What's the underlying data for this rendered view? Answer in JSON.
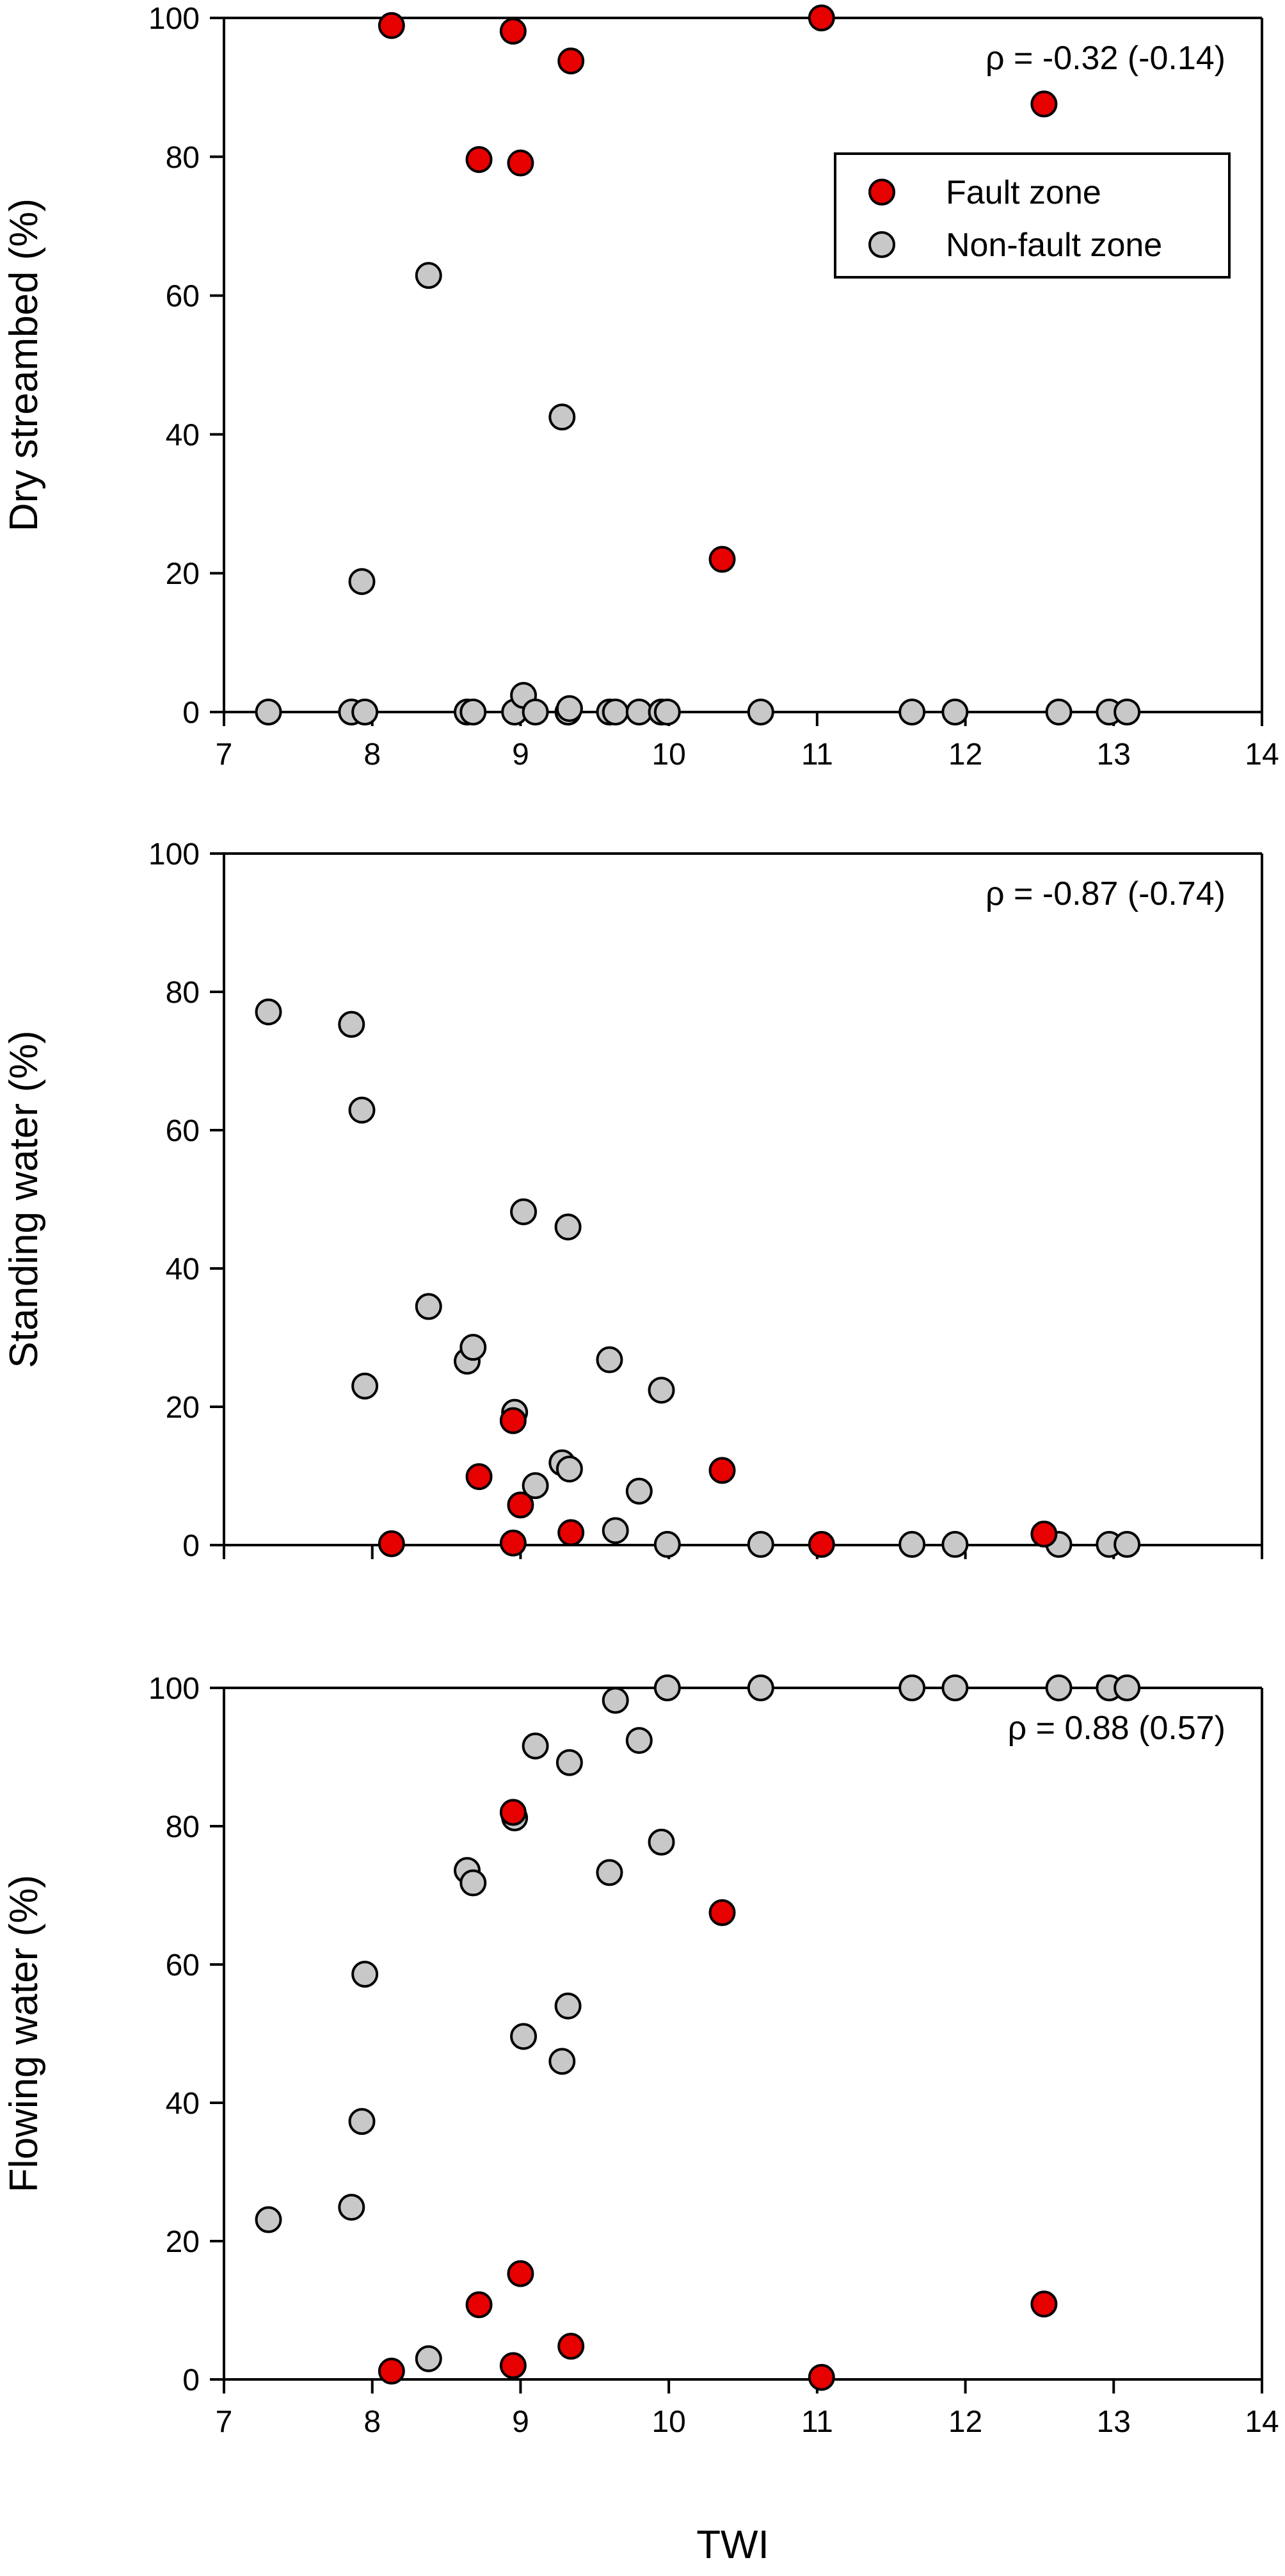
{
  "figure": {
    "xlabel": "TWI"
  },
  "legend": {
    "entries": [
      {
        "label": "Fault zone",
        "color": "#e60000"
      },
      {
        "label": "Non-fault zone",
        "color": "#c8c8c8"
      }
    ]
  },
  "chart_data": [
    {
      "type": "scatter",
      "title": "",
      "xlabel": "",
      "ylabel": "Dry streambed (%)",
      "xlim": [
        7,
        14
      ],
      "ylim": [
        0,
        100
      ],
      "xticks": [
        "7",
        "8",
        "9",
        "10",
        "11",
        "12",
        "13",
        "14"
      ],
      "yticks": [
        "0",
        "20",
        "40",
        "60",
        "80",
        "100"
      ],
      "annotation": "ρ = -0.32 (-0.14)",
      "legend_position": "top-right",
      "grid": false,
      "series": [
        {
          "name": "Fault zone",
          "color": "#e60000",
          "points": [
            [
              8.13,
              98.9
            ],
            [
              8.72,
              79.6
            ],
            [
              8.95,
              98.1
            ],
            [
              9.0,
              79.1
            ],
            [
              9.34,
              93.8
            ],
            [
              10.36,
              22.0
            ],
            [
              11.03,
              100.0
            ],
            [
              12.53,
              87.6
            ]
          ]
        },
        {
          "name": "Non-fault zone",
          "color": "#c8c8c8",
          "points": [
            [
              7.3,
              0
            ],
            [
              7.86,
              0
            ],
            [
              7.93,
              18.8
            ],
            [
              7.95,
              0
            ],
            [
              8.38,
              62.9
            ],
            [
              8.64,
              0
            ],
            [
              8.68,
              0
            ],
            [
              8.96,
              0
            ],
            [
              9.02,
              2.4
            ],
            [
              9.1,
              0
            ],
            [
              9.28,
              42.5
            ],
            [
              9.32,
              0
            ],
            [
              9.33,
              0.5
            ],
            [
              9.6,
              0
            ],
            [
              9.64,
              0
            ],
            [
              9.8,
              0
            ],
            [
              9.95,
              0
            ],
            [
              9.99,
              0
            ],
            [
              10.62,
              0
            ],
            [
              11.64,
              0
            ],
            [
              11.93,
              0
            ],
            [
              12.63,
              0
            ],
            [
              12.97,
              0
            ],
            [
              13.09,
              0
            ]
          ]
        }
      ]
    },
    {
      "type": "scatter",
      "title": "",
      "xlabel": "",
      "ylabel": "Standing water (%)",
      "xlim": [
        7,
        14
      ],
      "ylim": [
        0,
        100
      ],
      "xticks": [],
      "yticks": [
        "0",
        "20",
        "40",
        "60",
        "80",
        "100"
      ],
      "annotation": "ρ = -0.87 (-0.74)",
      "grid": false,
      "series": [
        {
          "name": "Fault zone",
          "color": "#e60000",
          "points": [
            [
              8.13,
              0.2
            ],
            [
              8.72,
              9.9
            ],
            [
              8.95,
              18.0
            ],
            [
              8.95,
              0.3
            ],
            [
              9.0,
              5.8
            ],
            [
              9.34,
              1.8
            ],
            [
              10.36,
              10.8
            ],
            [
              11.03,
              0.1
            ],
            [
              12.53,
              1.6
            ]
          ]
        },
        {
          "name": "Non-fault zone",
          "color": "#c8c8c8",
          "points": [
            [
              7.3,
              77.1
            ],
            [
              7.86,
              75.3
            ],
            [
              7.93,
              62.9
            ],
            [
              7.95,
              23.0
            ],
            [
              8.38,
              34.5
            ],
            [
              8.64,
              26.6
            ],
            [
              8.68,
              28.6
            ],
            [
              8.96,
              19.2
            ],
            [
              9.02,
              48.2
            ],
            [
              9.1,
              8.6
            ],
            [
              9.28,
              11.9
            ],
            [
              9.32,
              46.0
            ],
            [
              9.33,
              11.0
            ],
            [
              9.6,
              26.8
            ],
            [
              9.64,
              2.1
            ],
            [
              9.8,
              7.8
            ],
            [
              9.95,
              22.4
            ],
            [
              9.99,
              0.1
            ],
            [
              10.62,
              0.1
            ],
            [
              11.64,
              0.1
            ],
            [
              11.93,
              0.1
            ],
            [
              12.63,
              0.1
            ],
            [
              12.97,
              0.1
            ],
            [
              13.09,
              0.1
            ]
          ]
        }
      ]
    },
    {
      "type": "scatter",
      "title": "",
      "xlabel": "TWI",
      "ylabel": "Flowing water (%)",
      "xlim": [
        7,
        14
      ],
      "ylim": [
        0,
        100
      ],
      "xticks": [
        "7",
        "8",
        "9",
        "10",
        "11",
        "12",
        "13",
        "14"
      ],
      "yticks": [
        "0",
        "20",
        "40",
        "60",
        "80",
        "100"
      ],
      "annotation": "ρ = 0.88 (0.57)",
      "grid": false,
      "series": [
        {
          "name": "Fault zone",
          "color": "#e60000",
          "points": [
            [
              8.13,
              1.2
            ],
            [
              8.72,
              10.8
            ],
            [
              8.95,
              82.0
            ],
            [
              8.95,
              2.0
            ],
            [
              9.0,
              15.3
            ],
            [
              9.34,
              4.8
            ],
            [
              10.36,
              67.5
            ],
            [
              11.03,
              0.3
            ],
            [
              12.53,
              10.9
            ]
          ]
        },
        {
          "name": "Non-fault zone",
          "color": "#c8c8c8",
          "points": [
            [
              7.3,
              23.1
            ],
            [
              7.86,
              24.9
            ],
            [
              7.93,
              37.3
            ],
            [
              7.95,
              58.6
            ],
            [
              8.38,
              3.0
            ],
            [
              8.64,
              73.6
            ],
            [
              8.68,
              71.8
            ],
            [
              8.96,
              81.2
            ],
            [
              9.02,
              49.6
            ],
            [
              9.1,
              91.6
            ],
            [
              9.28,
              46.0
            ],
            [
              9.32,
              54.0
            ],
            [
              9.33,
              89.2
            ],
            [
              9.6,
              73.3
            ],
            [
              9.64,
              98.2
            ],
            [
              9.8,
              92.4
            ],
            [
              9.95,
              77.7
            ],
            [
              9.99,
              100.0
            ],
            [
              10.62,
              100.0
            ],
            [
              11.64,
              100.0
            ],
            [
              11.93,
              100.0
            ],
            [
              12.63,
              100.0
            ],
            [
              12.97,
              100.0
            ],
            [
              13.09,
              100.0
            ]
          ]
        }
      ]
    }
  ]
}
